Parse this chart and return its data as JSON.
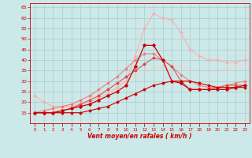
{
  "xlabel": "Vent moyen/en rafales ( km/h )",
  "background_color": "#cce8e8",
  "grid_color": "#aacccc",
  "xlim": [
    -0.5,
    23.5
  ],
  "ylim": [
    10,
    67
  ],
  "yticks": [
    15,
    20,
    25,
    30,
    35,
    40,
    45,
    50,
    55,
    60,
    65
  ],
  "xticks": [
    0,
    1,
    2,
    3,
    4,
    5,
    6,
    7,
    8,
    9,
    10,
    11,
    12,
    13,
    14,
    15,
    16,
    17,
    18,
    19,
    20,
    21,
    22,
    23
  ],
  "lines": [
    {
      "x": [
        0,
        1,
        2,
        3,
        4,
        5,
        6,
        7,
        8,
        9,
        10,
        11,
        12,
        13,
        14,
        15,
        16,
        17,
        18,
        19,
        20,
        21,
        22,
        23
      ],
      "y": [
        15,
        15,
        15,
        15,
        15,
        15,
        16,
        17,
        18,
        20,
        22,
        24,
        26,
        28,
        29,
        30,
        30,
        30,
        29,
        28,
        27,
        27,
        27,
        27
      ],
      "color": "#cc0000",
      "linewidth": 0.8,
      "marker": "D",
      "markersize": 1.5,
      "zorder": 5
    },
    {
      "x": [
        0,
        1,
        2,
        3,
        4,
        5,
        6,
        7,
        8,
        9,
        10,
        11,
        12,
        13,
        14,
        15,
        16,
        17,
        18,
        19,
        20,
        21,
        22,
        23
      ],
      "y": [
        15,
        15,
        15,
        16,
        17,
        18,
        19,
        21,
        23,
        25,
        28,
        37,
        47,
        47,
        40,
        30,
        29,
        26,
        26,
        26,
        26,
        26,
        27,
        28
      ],
      "color": "#cc0000",
      "linewidth": 0.9,
      "marker": "D",
      "markersize": 1.8,
      "zorder": 6
    },
    {
      "x": [
        0,
        1,
        2,
        3,
        4,
        5,
        6,
        7,
        8,
        9,
        10,
        11,
        12,
        13,
        14,
        15,
        16,
        17,
        18,
        19,
        20,
        21,
        22,
        23
      ],
      "y": [
        15,
        15,
        15,
        16,
        17,
        19,
        21,
        23,
        26,
        29,
        32,
        35,
        38,
        41,
        40,
        37,
        30,
        26,
        26,
        26,
        27,
        28,
        28,
        28
      ],
      "color": "#dd4444",
      "linewidth": 0.7,
      "marker": "D",
      "markersize": 1.5,
      "zorder": 4
    },
    {
      "x": [
        0,
        1,
        2,
        3,
        4,
        5,
        6,
        7,
        8,
        9,
        10,
        11,
        12,
        13,
        14,
        15,
        16,
        17,
        18,
        19,
        20,
        21,
        22,
        23
      ],
      "y": [
        15,
        16,
        17,
        18,
        19,
        21,
        23,
        26,
        29,
        32,
        36,
        40,
        43,
        43,
        40,
        37,
        33,
        30,
        28,
        27,
        27,
        28,
        29,
        30
      ],
      "color": "#ee7777",
      "linewidth": 0.7,
      "marker": "D",
      "markersize": 1.3,
      "zorder": 3
    },
    {
      "x": [
        0,
        1,
        2,
        3,
        4,
        5,
        6,
        7,
        8,
        9,
        10,
        11,
        12,
        13,
        14,
        15,
        16,
        17,
        18,
        19,
        20,
        21,
        22,
        23
      ],
      "y": [
        23,
        20,
        18,
        18,
        18,
        19,
        20,
        22,
        24,
        27,
        30,
        42,
        55,
        62,
        60,
        59,
        53,
        45,
        42,
        40,
        40,
        39,
        39,
        40
      ],
      "color": "#ffaaaa",
      "linewidth": 0.7,
      "marker": "D",
      "markersize": 1.3,
      "zorder": 2
    },
    {
      "x": [
        0,
        1,
        2,
        3,
        4,
        5,
        6,
        7,
        8,
        9,
        10,
        11,
        12,
        13,
        14,
        15,
        16,
        17,
        18,
        19,
        20,
        21,
        22,
        23
      ],
      "y": [
        15,
        15,
        16,
        17,
        18,
        20,
        22,
        24,
        26,
        28,
        30,
        32,
        34,
        36,
        37,
        37,
        37,
        36,
        35,
        35,
        35,
        36,
        37,
        38
      ],
      "color": "#ffcccc",
      "linewidth": 0.7,
      "marker": "D",
      "markersize": 1.3,
      "zorder": 1
    }
  ]
}
